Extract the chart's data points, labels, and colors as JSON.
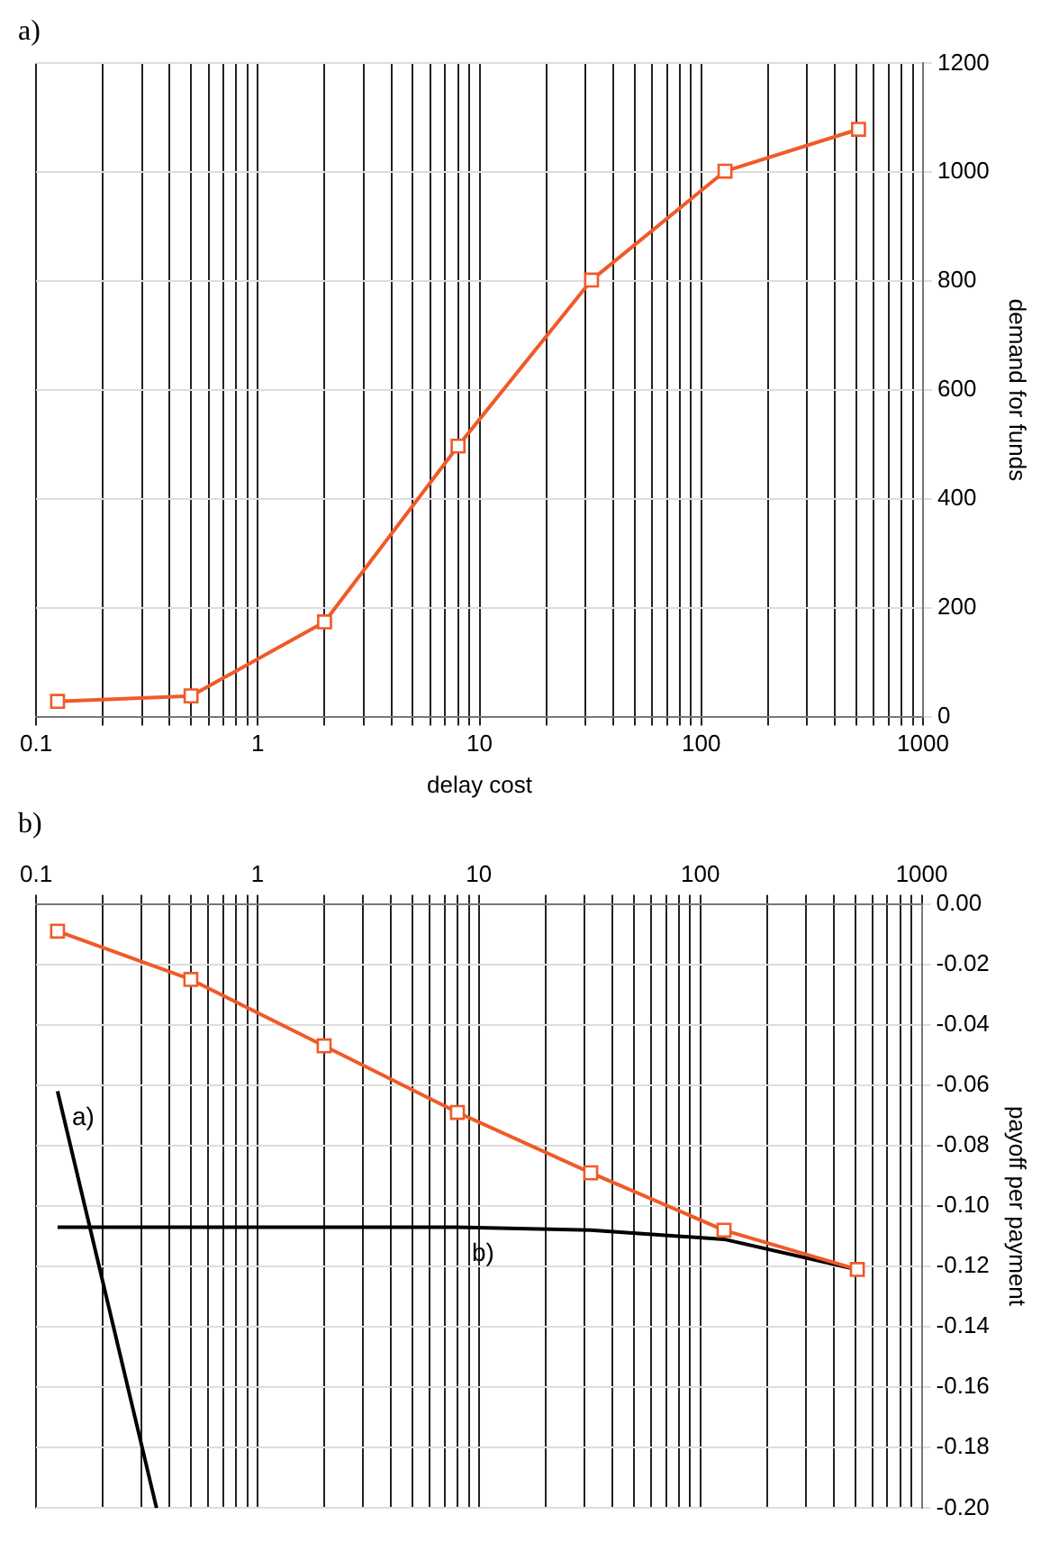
{
  "chart_data": [
    {
      "type": "line",
      "title": "a)",
      "xlabel": "delay cost",
      "ylabel": "demand for funds",
      "log": "x",
      "grid": true,
      "line_style": "solid",
      "xlim": [
        0.1,
        1000
      ],
      "xticks": [
        0.1,
        {
          "value": 0.2,
          "label": null
        },
        {
          "value": 0.3,
          "label": null
        },
        {
          "value": 0.4,
          "label": null
        },
        {
          "value": 0.5,
          "label": null
        },
        {
          "value": 0.6,
          "label": null
        },
        {
          "value": 0.7,
          "label": null
        },
        {
          "value": 0.8,
          "label": null
        },
        {
          "value": 0.9,
          "label": null
        },
        1,
        {
          "value": 2,
          "label": null
        },
        {
          "value": 3,
          "label": null
        },
        {
          "value": 4,
          "label": null
        },
        {
          "value": 5,
          "label": null
        },
        {
          "value": 6,
          "label": null
        },
        {
          "value": 7,
          "label": null
        },
        {
          "value": 8,
          "label": null
        },
        {
          "value": 9,
          "label": null
        },
        10,
        {
          "value": 20,
          "label": null
        },
        {
          "value": 30,
          "label": null
        },
        {
          "value": 40,
          "label": null
        },
        {
          "value": 50,
          "label": null
        },
        {
          "value": 60,
          "label": null
        },
        {
          "value": 70,
          "label": null
        },
        {
          "value": 80,
          "label": null
        },
        {
          "value": 90,
          "label": null
        },
        100,
        {
          "value": 200,
          "label": null
        },
        {
          "value": 300,
          "label": null
        },
        {
          "value": 400,
          "label": null
        },
        {
          "value": 500,
          "label": null
        },
        {
          "value": 600,
          "label": null
        },
        {
          "value": 700,
          "label": null
        },
        {
          "value": 800,
          "label": null
        },
        {
          "value": 900,
          "label": null
        },
        1000
      ],
      "ylim": [
        0,
        1200
      ],
      "yticks": [
        0,
        200,
        400,
        600,
        800,
        1000,
        1200
      ],
      "series": [
        {
          "color": "#f05a28",
          "marker": "square",
          "x": [
            0.125,
            0.5,
            2,
            8,
            32,
            128,
            512
          ],
          "values": [
            28,
            38,
            174,
            497,
            802,
            1002,
            1079
          ]
        }
      ]
    },
    {
      "type": "line",
      "title": "b)",
      "ylabel": "payoff per payment",
      "log": "x",
      "grid": true,
      "line_style": "solid",
      "xlim": [
        0.1,
        1000
      ],
      "xticks": [
        0.1,
        {
          "value": 0.2,
          "label": null
        },
        {
          "value": 0.3,
          "label": null
        },
        {
          "value": 0.4,
          "label": null
        },
        {
          "value": 0.5,
          "label": null
        },
        {
          "value": 0.6,
          "label": null
        },
        {
          "value": 0.7,
          "label": null
        },
        {
          "value": 0.8,
          "label": null
        },
        {
          "value": 0.9,
          "label": null
        },
        1,
        {
          "value": 2,
          "label": null
        },
        {
          "value": 3,
          "label": null
        },
        {
          "value": 4,
          "label": null
        },
        {
          "value": 5,
          "label": null
        },
        {
          "value": 6,
          "label": null
        },
        {
          "value": 7,
          "label": null
        },
        {
          "value": 8,
          "label": null
        },
        {
          "value": 9,
          "label": null
        },
        10,
        {
          "value": 20,
          "label": null
        },
        {
          "value": 30,
          "label": null
        },
        {
          "value": 40,
          "label": null
        },
        {
          "value": 50,
          "label": null
        },
        {
          "value": 60,
          "label": null
        },
        {
          "value": 70,
          "label": null
        },
        {
          "value": 80,
          "label": null
        },
        {
          "value": 90,
          "label": null
        },
        100,
        {
          "value": 200,
          "label": null
        },
        {
          "value": 300,
          "label": null
        },
        {
          "value": 400,
          "label": null
        },
        {
          "value": 500,
          "label": null
        },
        {
          "value": 600,
          "label": null
        },
        {
          "value": 700,
          "label": null
        },
        {
          "value": 800,
          "label": null
        },
        {
          "value": 900,
          "label": null
        },
        1000
      ],
      "ylim": [
        -0.2,
        0
      ],
      "yticks": [
        {
          "value": -0.2,
          "label": "-0.20"
        },
        {
          "value": -0.18,
          "label": "-0.18"
        },
        {
          "value": -0.16,
          "label": "-0.16"
        },
        {
          "value": -0.14,
          "label": "-0.14"
        },
        {
          "value": -0.12,
          "label": "-0.12"
        },
        {
          "value": -0.1,
          "label": "-0.10"
        },
        {
          "value": -0.08,
          "label": "-0.08"
        },
        {
          "value": -0.06,
          "label": "-0.06"
        },
        {
          "value": -0.04,
          "label": "-0.04"
        },
        {
          "value": -0.02,
          "label": "-0.02"
        },
        {
          "value": 0,
          "label": "0.00"
        }
      ],
      "annotations": [
        {
          "text": "a)",
          "x": 0.125,
          "y": -0.062
        },
        {
          "text": "b)",
          "x": 8,
          "y": -0.107
        }
      ],
      "series": [
        {
          "color": "#f05a28",
          "marker": "square",
          "x": [
            0.125,
            0.5,
            2,
            8,
            32,
            128,
            512
          ],
          "values": [
            -0.009,
            -0.025,
            -0.047,
            -0.069,
            -0.089,
            -0.108,
            -0.121
          ]
        },
        {
          "color": "#000000",
          "marker": "none",
          "x": [
            0.125,
            0.5,
            2,
            8,
            32,
            128,
            512
          ],
          "values": [
            -0.107,
            -0.107,
            -0.107,
            -0.107,
            -0.108,
            -0.111,
            -0.121
          ]
        },
        {
          "color": "#000000",
          "marker": "none",
          "x": [
            0.125,
            0.35
          ],
          "values": [
            -0.062,
            -0.2
          ]
        }
      ]
    }
  ]
}
